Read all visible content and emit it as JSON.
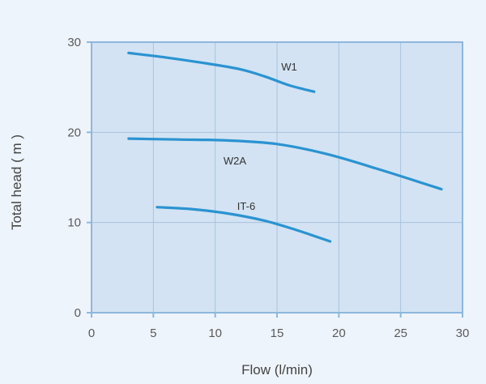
{
  "chart_data": {
    "type": "line",
    "xlabel": "Flow (l/min)",
    "ylabel": "Total head ( m )",
    "xlim": [
      0,
      30
    ],
    "ylim": [
      0,
      30
    ],
    "xticks": [
      0,
      5,
      10,
      15,
      20,
      25,
      30
    ],
    "yticks": [
      0,
      10,
      20,
      30
    ],
    "grid": true,
    "colors": {
      "series": "#2b93d1",
      "plot_bg": "#d3e3f3",
      "frame": "#8cb7dd",
      "grid": "#a7c3de",
      "page_bg": "#eef4fb"
    },
    "series": [
      {
        "name": "W1",
        "x": [
          3,
          6,
          9,
          12,
          14,
          16,
          18
        ],
        "y": [
          28.8,
          28.3,
          27.7,
          27.0,
          26.2,
          25.2,
          24.5
        ]
      },
      {
        "name": "W2A",
        "x": [
          3,
          7,
          11,
          15,
          19,
          23,
          28.3
        ],
        "y": [
          19.3,
          19.2,
          19.1,
          18.7,
          17.6,
          16.0,
          13.7
        ]
      },
      {
        "name": "IT-6",
        "x": [
          5.3,
          8,
          11,
          14,
          16.5,
          19.3
        ],
        "y": [
          11.7,
          11.5,
          11.0,
          10.2,
          9.2,
          7.9
        ]
      }
    ]
  }
}
